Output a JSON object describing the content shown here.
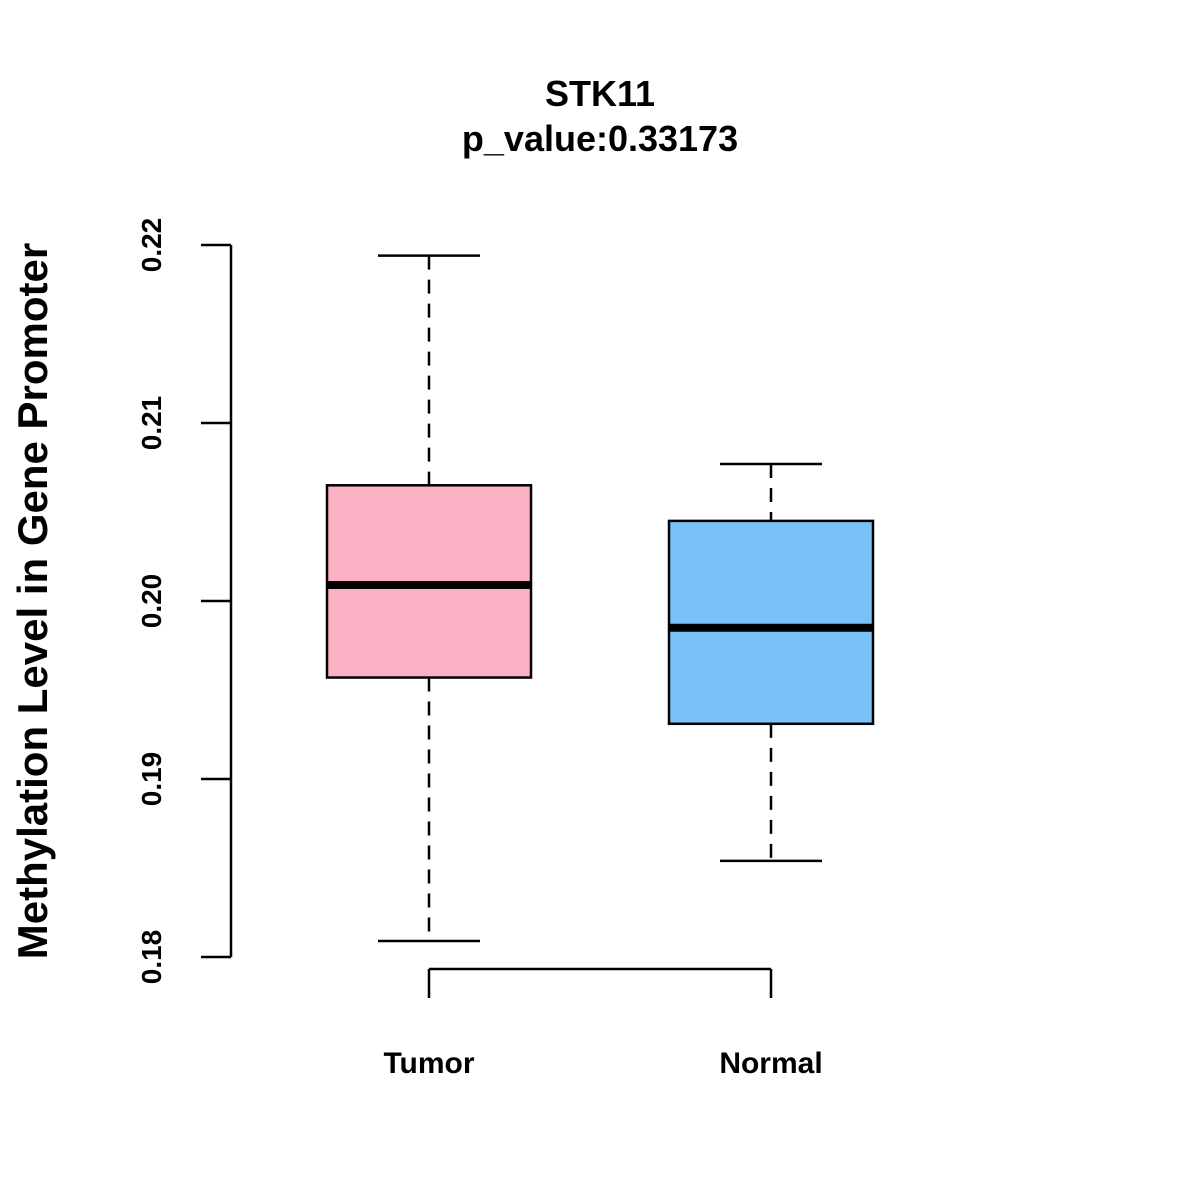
{
  "chart_data": {
    "type": "boxplot",
    "title": "STK11",
    "subtitle": "p_value:0.33173",
    "xlabel": "",
    "ylabel": "Methylation Level in Gene Promoter",
    "ylim": [
      0.18,
      0.22
    ],
    "yticks": [
      0.18,
      0.19,
      0.2,
      0.21,
      0.22
    ],
    "ytick_labels": [
      "0.18",
      "0.19",
      "0.20",
      "0.21",
      "0.22"
    ],
    "categories": [
      "Tumor",
      "Normal"
    ],
    "boxes": [
      {
        "name": "Tumor",
        "color": "#FBB1C3",
        "whisker_low": 0.1809,
        "q1": 0.1957,
        "median": 0.2009,
        "q3": 0.2065,
        "whisker_high": 0.2194
      },
      {
        "name": "Normal",
        "color": "#79C2F9",
        "whisker_low": 0.1854,
        "q1": 0.1931,
        "median": 0.1985,
        "q3": 0.2045,
        "whisker_high": 0.2077
      }
    ],
    "grid": false,
    "legend": "none"
  }
}
